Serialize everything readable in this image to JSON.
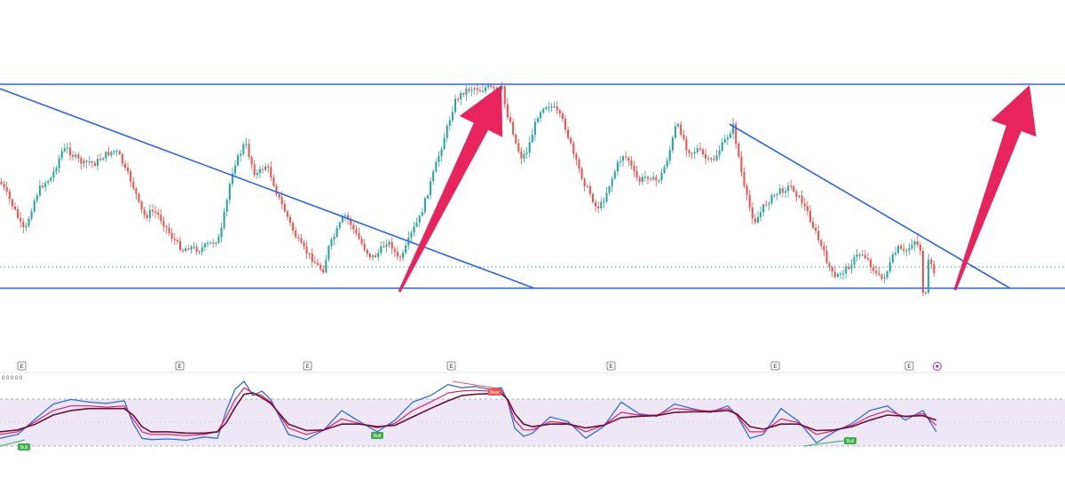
{
  "colors": {
    "up": "#2aa79b",
    "down": "#ef5350",
    "trendline": "#2962ff",
    "arrow": "#e8245f",
    "dotted_level": "#26a69a",
    "osc_fast": "#2f6fdc",
    "osc_mid": "#e91e63",
    "osc_slow": "#6a0f38",
    "osc_band": "#ede7f6",
    "bull_badge": "#3fae49",
    "bear_badge": "#ef5350"
  },
  "event_markers": [
    "E",
    "E",
    "E",
    "E",
    "E",
    "E",
    "E"
  ],
  "oscillator_header": "0 0 0 0 0",
  "badges": {
    "bull": "Bull",
    "bear": "Bear"
  },
  "chart_data": [
    {
      "type": "candlestick",
      "title": "",
      "xlabel": "",
      "ylabel": "",
      "grid": false,
      "series": [
        {
          "kind": "close-path",
          "x": [
            0,
            6,
            12,
            18,
            24,
            28,
            34,
            40,
            46,
            52,
            58,
            64,
            70,
            76,
            82,
            88,
            94,
            100,
            106,
            112,
            118,
            124,
            130,
            136,
            140,
            146,
            152,
            158,
            164,
            170,
            176,
            182,
            188,
            194,
            200,
            206,
            212,
            218,
            224,
            230,
            236,
            242,
            248,
            252,
            256,
            260,
            264,
            270,
            276,
            282,
            288,
            294,
            300,
            306,
            312,
            318,
            322,
            328,
            334,
            340,
            346,
            352,
            358,
            364,
            370,
            376,
            382,
            388,
            394,
            400,
            406,
            412,
            418,
            424,
            430,
            436,
            442,
            448,
            454,
            460,
            466,
            472,
            478,
            484,
            490,
            496,
            502,
            508,
            512,
            518,
            524,
            530,
            536,
            542,
            548,
            554,
            560,
            566,
            570,
            576,
            582,
            588,
            594,
            600,
            606,
            612,
            618,
            624,
            630,
            636,
            642,
            648,
            654,
            660,
            666,
            672,
            678,
            684,
            690,
            696,
            702,
            708,
            714,
            720,
            726,
            732,
            738,
            744,
            750,
            756,
            762,
            768,
            774,
            780,
            786,
            792,
            798,
            804,
            810,
            816,
            822,
            826,
            832,
            838,
            844,
            850,
            856,
            862,
            868,
            874,
            880,
            886,
            892,
            898,
            904,
            910,
            916,
            922,
            928,
            934,
            940,
            946,
            952,
            958,
            964,
            970,
            976,
            982,
            988,
            994,
            1000,
            1006,
            1012,
            1018,
            1024,
            1030,
            1036,
            1042,
            1048,
            1054
          ],
          "y": [
            205,
            215,
            228,
            240,
            255,
            262,
            240,
            222,
            210,
            205,
            200,
            185,
            170,
            168,
            175,
            180,
            185,
            182,
            185,
            180,
            175,
            172,
            170,
            178,
            190,
            200,
            215,
            235,
            245,
            238,
            240,
            248,
            258,
            268,
            275,
            282,
            278,
            280,
            282,
            278,
            275,
            272,
            268,
            245,
            225,
            200,
            185,
            175,
            160,
            180,
            198,
            192,
            186,
            200,
            218,
            232,
            240,
            255,
            268,
            278,
            285,
            292,
            300,
            305,
            280,
            268,
            255,
            242,
            250,
            262,
            272,
            282,
            290,
            288,
            280,
            272,
            278,
            292,
            288,
            272,
            258,
            248,
            230,
            210,
            190,
            170,
            150,
            130,
            115,
            108,
            102,
            100,
            99,
            102,
            98,
            100,
            104,
            100,
            125,
            140,
            165,
            178,
            170,
            150,
            130,
            120,
            118,
            122,
            130,
            140,
            160,
            180,
            195,
            210,
            220,
            235,
            230,
            215,
            200,
            185,
            175,
            180,
            195,
            205,
            200,
            198,
            205,
            200,
            185,
            165,
            140,
            150,
            168,
            172,
            168,
            175,
            182,
            180,
            170,
            160,
            150,
            142,
            175,
            210,
            232,
            250,
            242,
            230,
            225,
            218,
            215,
            212,
            210,
            220,
            228,
            240,
            255,
            270,
            285,
            300,
            315,
            308,
            305,
            298,
            290,
            285,
            290,
            300,
            310,
            315,
            305,
            290,
            280,
            285,
            280,
            270,
            280,
            290,
            298,
            310
          ]
        }
      ],
      "annotations": {
        "horizontal_levels": [
          "resistance",
          "support",
          "dotted-last-price"
        ],
        "trendlines": 2,
        "arrows": 2
      }
    },
    {
      "type": "line",
      "title": "",
      "xlabel": "",
      "ylabel": "",
      "grid": false,
      "y_levels": [
        "overbought",
        "midline",
        "oversold"
      ],
      "series": [
        {
          "kind": "fast",
          "x": [
            0,
            20,
            40,
            60,
            80,
            100,
            120,
            140,
            150,
            160,
            170,
            190,
            210,
            230,
            245,
            255,
            265,
            275,
            285,
            295,
            305,
            315,
            325,
            345,
            365,
            385,
            405,
            425,
            445,
            465,
            485,
            505,
            520,
            535,
            550,
            565,
            572,
            580,
            590,
            600,
            620,
            640,
            660,
            680,
            700,
            720,
            740,
            760,
            780,
            800,
            820,
            830,
            845,
            860,
            880,
            900,
            920,
            940,
            960,
            980,
            1000,
            1020,
            1040,
            1055
          ],
          "y": [
            0.12,
            0.18,
            0.42,
            0.65,
            0.72,
            0.68,
            0.66,
            0.7,
            0.35,
            0.12,
            0.1,
            0.11,
            0.09,
            0.14,
            0.12,
            0.55,
            0.88,
            1.0,
            0.78,
            0.85,
            0.72,
            0.45,
            0.18,
            0.1,
            0.25,
            0.55,
            0.38,
            0.22,
            0.4,
            0.68,
            0.78,
            0.95,
            0.9,
            0.92,
            0.88,
            0.9,
            0.7,
            0.28,
            0.15,
            0.2,
            0.45,
            0.38,
            0.12,
            0.3,
            0.68,
            0.5,
            0.46,
            0.65,
            0.58,
            0.52,
            0.62,
            0.48,
            0.12,
            0.18,
            0.58,
            0.38,
            0.05,
            0.22,
            0.35,
            0.55,
            0.62,
            0.4,
            0.55,
            0.22
          ]
        },
        {
          "kind": "signal",
          "x": [
            0,
            20,
            40,
            60,
            80,
            100,
            120,
            140,
            150,
            160,
            170,
            190,
            210,
            230,
            245,
            255,
            265,
            275,
            285,
            295,
            305,
            315,
            325,
            345,
            365,
            385,
            405,
            425,
            445,
            465,
            485,
            505,
            520,
            535,
            550,
            565,
            572,
            580,
            590,
            600,
            620,
            640,
            660,
            680,
            700,
            720,
            740,
            760,
            780,
            800,
            820,
            830,
            845,
            860,
            880,
            900,
            920,
            940,
            960,
            980,
            1000,
            1020,
            1040,
            1055
          ],
          "y": [
            0.18,
            0.22,
            0.38,
            0.55,
            0.62,
            0.62,
            0.6,
            0.62,
            0.42,
            0.22,
            0.18,
            0.18,
            0.16,
            0.18,
            0.22,
            0.45,
            0.72,
            0.9,
            0.82,
            0.78,
            0.68,
            0.48,
            0.28,
            0.18,
            0.25,
            0.42,
            0.35,
            0.28,
            0.35,
            0.55,
            0.68,
            0.82,
            0.85,
            0.86,
            0.85,
            0.85,
            0.7,
            0.4,
            0.25,
            0.25,
            0.38,
            0.35,
            0.22,
            0.32,
            0.52,
            0.48,
            0.48,
            0.58,
            0.56,
            0.54,
            0.58,
            0.48,
            0.22,
            0.22,
            0.42,
            0.36,
            0.18,
            0.24,
            0.32,
            0.46,
            0.55,
            0.45,
            0.5,
            0.32
          ]
        },
        {
          "kind": "slow",
          "x": [
            0,
            20,
            40,
            60,
            80,
            100,
            120,
            140,
            150,
            160,
            170,
            190,
            210,
            230,
            245,
            255,
            265,
            275,
            285,
            295,
            305,
            315,
            325,
            345,
            365,
            385,
            405,
            425,
            445,
            465,
            485,
            505,
            520,
            535,
            550,
            565,
            572,
            580,
            590,
            600,
            620,
            640,
            660,
            680,
            700,
            720,
            740,
            760,
            780,
            800,
            820,
            830,
            845,
            860,
            880,
            900,
            920,
            940,
            960,
            980,
            1000,
            1020,
            1040,
            1055
          ],
          "y": [
            0.22,
            0.25,
            0.34,
            0.48,
            0.55,
            0.58,
            0.58,
            0.58,
            0.48,
            0.3,
            0.22,
            0.22,
            0.2,
            0.2,
            0.22,
            0.36,
            0.6,
            0.8,
            0.82,
            0.75,
            0.66,
            0.5,
            0.34,
            0.24,
            0.25,
            0.34,
            0.34,
            0.3,
            0.32,
            0.45,
            0.58,
            0.7,
            0.78,
            0.8,
            0.81,
            0.81,
            0.72,
            0.5,
            0.34,
            0.3,
            0.34,
            0.34,
            0.28,
            0.32,
            0.44,
            0.46,
            0.47,
            0.52,
            0.53,
            0.53,
            0.55,
            0.5,
            0.3,
            0.26,
            0.34,
            0.34,
            0.24,
            0.25,
            0.3,
            0.4,
            0.48,
            0.46,
            0.47,
            0.4
          ]
        }
      ]
    }
  ]
}
